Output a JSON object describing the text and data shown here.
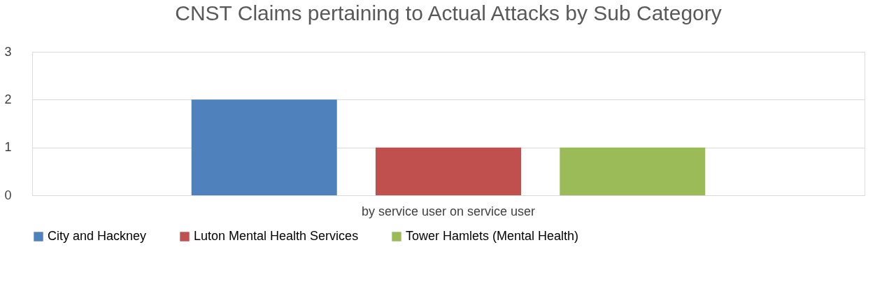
{
  "chart_data": {
    "type": "bar",
    "title": "CNST Claims pertaining to Actual Attacks by Sub Category",
    "categories": [
      "by service user on service user"
    ],
    "series": [
      {
        "name": "City and Hackney",
        "color": "#4f81bd",
        "values": [
          2
        ]
      },
      {
        "name": "Luton Mental Health Services",
        "color": "#c0504d",
        "values": [
          1
        ]
      },
      {
        "name": "Tower Hamlets (Mental Health)",
        "color": "#9bbb59",
        "values": [
          1
        ]
      }
    ],
    "ylim": [
      0,
      3
    ],
    "yticks": [
      0,
      1,
      2,
      3
    ],
    "grid": "y",
    "legend": "bottom"
  }
}
